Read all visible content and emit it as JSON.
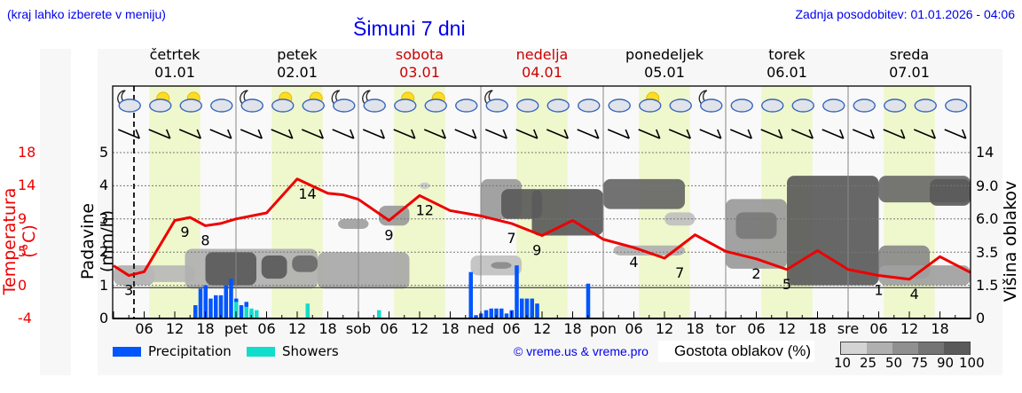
{
  "header": {
    "location_hint": "(kraj lahko izberete v meniju)",
    "title": "Šimuni 7 dni",
    "last_update": "Zadnja posodobitev: 01.01.2026 - 04:06"
  },
  "days": [
    {
      "name": "četrtek",
      "date": "01.01",
      "weekend": false
    },
    {
      "name": "petek",
      "date": "02.01",
      "weekend": false
    },
    {
      "name": "sobota",
      "date": "03.01",
      "weekend": true
    },
    {
      "name": "nedelja",
      "date": "04.01",
      "weekend": true
    },
    {
      "name": "ponedeljek",
      "date": "05.01",
      "weekend": false
    },
    {
      "name": "torek",
      "date": "06.01",
      "weekend": false
    },
    {
      "name": "sreda",
      "date": "07.01",
      "weekend": false
    }
  ],
  "axes": {
    "temp_label": "Temperatura (°C)",
    "temp_ticks": [
      "18",
      "14",
      "9",
      "5",
      "0",
      "-4"
    ],
    "precip_label": "Padavine (mm/h)",
    "precip_ticks": [
      "5",
      "4",
      "3",
      "2",
      "1",
      "0"
    ],
    "cloud_height_label": "Višina oblakov (km)",
    "cloud_height_ticks": [
      "14",
      "9.0",
      "6.0",
      "3.5",
      "1.5",
      "0"
    ],
    "x_ticks": [
      "06",
      "12",
      "18",
      "pet",
      "06",
      "12",
      "18",
      "sob",
      "06",
      "12",
      "18",
      "ned",
      "06",
      "12",
      "18",
      "pon",
      "06",
      "12",
      "18",
      "tor",
      "06",
      "12",
      "18",
      "sre",
      "06",
      "12",
      "18"
    ]
  },
  "legend": {
    "precipitation": "Precipitation",
    "showers": "Showers",
    "precipitation_color": "#0055ff",
    "showers_color": "#11ddcc",
    "copyright": "© vreme.us & vreme.pro",
    "cloud_density_label": "Gostota oblakov (%)",
    "cloud_density_scale": [
      "10",
      "25",
      "50",
      "75",
      "90",
      "100"
    ],
    "cloud_density_colors": [
      "#d4d4d4",
      "#b0b0b0",
      "#909090",
      "#747474",
      "#5a5a5a"
    ]
  },
  "colors": {
    "temperature_line": "#ee0000",
    "daylight_band": "#eff7cc",
    "title_blue": "#0000ee",
    "weekend_red": "#cc0000"
  },
  "chart_data": {
    "type": "line",
    "title": "Šimuni 7 dni",
    "x_unit": "hours since Thu 01.01 00:00",
    "temperature": {
      "name": "Temperatura (°C)",
      "x": [
        0,
        3,
        6,
        12,
        15,
        18,
        21,
        24,
        30,
        36,
        42,
        45,
        48,
        54,
        60,
        66,
        72,
        78,
        84,
        90,
        96,
        102,
        108,
        114,
        120,
        126,
        132,
        138,
        144,
        150,
        156,
        162,
        168
      ],
      "values": [
        3,
        1.7,
        2.2,
        9,
        9.4,
        8.3,
        8.6,
        9.2,
        10,
        14.5,
        12.6,
        12.4,
        11.8,
        9,
        12.3,
        10.3,
        9.6,
        8.6,
        7,
        9,
        6.5,
        5.4,
        4.0,
        7.1,
        4.9,
        3.9,
        2.5,
        5,
        2.5,
        1.7,
        1.2,
        4.2,
        2.1
      ],
      "labels": [
        {
          "x": 3,
          "text": "3"
        },
        {
          "x": 14,
          "text": "9"
        },
        {
          "x": 18,
          "text": "8"
        },
        {
          "x": 38,
          "text": "14"
        },
        {
          "x": 54,
          "text": "9"
        },
        {
          "x": 61,
          "text": "12"
        },
        {
          "x": 78,
          "text": "7"
        },
        {
          "x": 83,
          "text": "9"
        },
        {
          "x": 102,
          "text": "4"
        },
        {
          "x": 111,
          "text": "7"
        },
        {
          "x": 126,
          "text": "2"
        },
        {
          "x": 132,
          "text": "5"
        },
        {
          "x": 150,
          "text": "1"
        },
        {
          "x": 157,
          "text": "4"
        }
      ]
    },
    "precipitation": {
      "name": "Precipitation (mm/h)",
      "x": [
        16,
        17,
        18,
        19,
        20,
        21,
        22,
        23,
        24,
        25,
        26,
        27,
        70,
        71,
        72,
        73,
        74,
        75,
        76,
        77,
        78,
        79,
        80,
        81,
        82,
        83,
        84,
        85,
        93
      ],
      "values": [
        0.4,
        0.9,
        1.0,
        0.6,
        0.7,
        0.7,
        1.0,
        1.2,
        0.6,
        0.4,
        0.5,
        0.2,
        1.4,
        0.1,
        0.15,
        0.25,
        0.3,
        0.3,
        0.3,
        0.15,
        0.25,
        1.6,
        0.6,
        0.6,
        0.6,
        0.45,
        0,
        0,
        1.05
      ]
    },
    "showers": {
      "name": "Showers (mm/h)",
      "x": [
        24,
        26,
        27,
        28,
        38,
        52
      ],
      "values": [
        0.5,
        0.35,
        0.3,
        0.25,
        0.45,
        0.25
      ]
    },
    "ylim_precip": [
      0,
      5
    ],
    "ylim_temp": [
      -4,
      18
    ],
    "cloud_height_km_ticks": [
      0,
      1.5,
      3.5,
      6.0,
      9.0,
      14
    ],
    "daylight_hours": [
      7,
      17
    ]
  }
}
